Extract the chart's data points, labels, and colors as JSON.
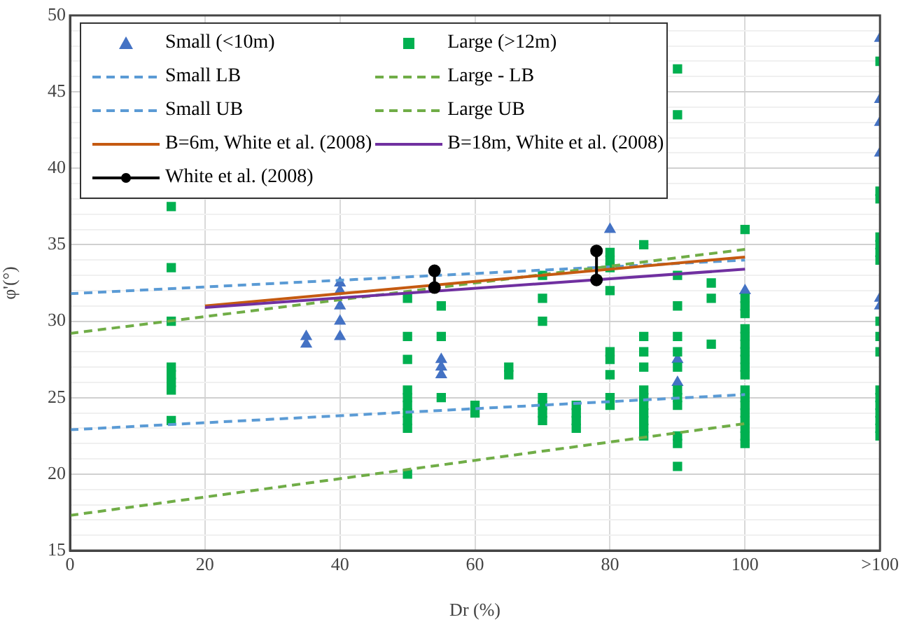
{
  "chart_data": {
    "type": "scatter",
    "xlabel": "Dr (%)",
    "ylabel": "φ'(°)",
    "xlim": [
      0,
      120
    ],
    "ylim": [
      15,
      50
    ],
    "xticks": [
      0,
      20,
      40,
      60,
      80,
      100,
      {
        "value": 120,
        "label": ">100"
      }
    ],
    "yticks": [
      15,
      {
        "value": 16,
        "label": null
      },
      {
        "value": 17,
        "label": null
      },
      {
        "value": 18,
        "label": null
      },
      {
        "value": 19,
        "label": null
      },
      20,
      {
        "value": 21,
        "label": null
      },
      {
        "value": 22,
        "label": null
      },
      {
        "value": 23,
        "label": null
      },
      {
        "value": 24,
        "label": null
      },
      25,
      {
        "value": 26,
        "label": null
      },
      {
        "value": 27,
        "label": null
      },
      {
        "value": 28,
        "label": null
      },
      {
        "value": 29,
        "label": null
      },
      30,
      {
        "value": 31,
        "label": null
      },
      {
        "value": 32,
        "label": null
      },
      {
        "value": 33,
        "label": null
      },
      {
        "value": 34,
        "label": null
      },
      35,
      {
        "value": 36,
        "label": null
      },
      {
        "value": 37,
        "label": null
      },
      {
        "value": 38,
        "label": null
      },
      {
        "value": 39,
        "label": null
      },
      40,
      {
        "value": 41,
        "label": null
      },
      {
        "value": 42,
        "label": null
      },
      {
        "value": 43,
        "label": null
      },
      {
        "value": 44,
        "label": null
      },
      45,
      {
        "value": 46,
        "label": null
      },
      {
        "value": 47,
        "label": null
      },
      {
        "value": 48,
        "label": null
      },
      {
        "value": 49,
        "label": null
      },
      50
    ],
    "grid": true,
    "legend": "top left",
    "series": [
      {
        "name": "Small (<10m)",
        "type": "scatter",
        "marker": "triangle",
        "color": "#4472c4",
        "x": [
          35,
          35,
          40,
          40,
          40,
          40,
          40,
          55,
          55,
          55,
          80,
          90,
          90,
          100,
          120,
          120,
          120,
          120,
          120,
          120
        ],
        "values": [
          28.5,
          29,
          32.5,
          32,
          31,
          30,
          29,
          27.5,
          27,
          26.5,
          36,
          27.5,
          26,
          32,
          48.5,
          44.5,
          43,
          41,
          31.5,
          31
        ]
      },
      {
        "name": "Large (>12m)",
        "type": "scatter",
        "marker": "square",
        "color": "#00b050",
        "x": [
          15,
          15,
          15,
          15,
          15,
          15,
          15,
          15,
          50,
          50,
          50,
          50,
          50,
          50,
          50,
          50,
          50,
          50,
          55,
          55,
          55,
          60,
          60,
          65,
          65,
          70,
          70,
          70,
          70,
          70,
          70,
          70,
          75,
          75,
          75,
          75,
          80,
          80,
          80,
          80,
          80,
          80,
          80,
          80,
          80,
          85,
          85,
          85,
          85,
          85,
          85,
          85,
          85,
          85,
          85,
          85,
          90,
          90,
          90,
          90,
          90,
          90,
          90,
          90,
          90,
          90,
          90,
          90,
          90,
          95,
          95,
          95,
          100,
          100,
          100,
          100,
          100,
          100,
          100,
          100,
          100,
          100,
          100,
          100,
          100,
          100,
          100,
          100,
          100,
          100,
          100,
          120,
          120,
          120,
          120,
          120,
          120,
          120,
          120,
          120,
          120,
          120,
          120,
          120,
          120,
          120,
          120,
          120
        ],
        "values": [
          37.5,
          33.5,
          30,
          27,
          26.5,
          26,
          25.5,
          23.5,
          31.5,
          29,
          27.5,
          25.5,
          25,
          24.5,
          24,
          23.5,
          23,
          20,
          31,
          29,
          25,
          24.5,
          24,
          27,
          26.5,
          33,
          31.5,
          30,
          25,
          24.5,
          24,
          23.5,
          24.5,
          24,
          23.5,
          23,
          34.5,
          34,
          33.5,
          32,
          28,
          27.5,
          26.5,
          25,
          24.5,
          35,
          29,
          28,
          27,
          25.5,
          25,
          24.5,
          24,
          23.5,
          23,
          22.5,
          46.5,
          43.5,
          33,
          31,
          29,
          28,
          27,
          25.5,
          25,
          24.5,
          22.5,
          22,
          20.5,
          32.5,
          31.5,
          28.5,
          36,
          31.5,
          31,
          30.5,
          29.5,
          29,
          28.5,
          28,
          27.5,
          27,
          26.5,
          25.5,
          25,
          24.5,
          24,
          23.5,
          23,
          22.5,
          22,
          47,
          38.5,
          38,
          35.5,
          35,
          34.5,
          34,
          30,
          29,
          28,
          25.5,
          25,
          24.5,
          24,
          23.5,
          23,
          22.5
        ]
      },
      {
        "name": "Small LB",
        "type": "line",
        "marker": "none",
        "line_style": "dashed",
        "color": "#5b9bd5",
        "x": [
          0,
          100
        ],
        "values": [
          22.9,
          25.2
        ]
      },
      {
        "name": "Large - LB",
        "type": "line",
        "marker": "none",
        "line_style": "dashed",
        "color": "#70ad47",
        "x": [
          0,
          100
        ],
        "values": [
          17.3,
          23.3
        ]
      },
      {
        "name": "Small UB",
        "type": "line",
        "marker": "none",
        "line_style": "dashed",
        "color": "#5b9bd5",
        "x": [
          0,
          100
        ],
        "values": [
          31.8,
          34.0
        ]
      },
      {
        "name": "Large UB",
        "type": "line",
        "marker": "none",
        "line_style": "dashed",
        "color": "#70ad47",
        "x": [
          0,
          100
        ],
        "values": [
          29.2,
          34.7
        ]
      },
      {
        "name": "B=6m, White et al. (2008)",
        "type": "line",
        "marker": "none",
        "line_style": "solid",
        "color": "#c55a11",
        "x": [
          20,
          100
        ],
        "values": [
          31.0,
          34.2
        ]
      },
      {
        "name": "B=18m, White et al. (2008)",
        "type": "line",
        "marker": "none",
        "line_style": "solid",
        "color": "#7030a0",
        "x": [
          20,
          100
        ],
        "values": [
          30.9,
          33.4
        ]
      },
      {
        "name": "White et al. (2008)",
        "type": "line",
        "marker": "circle",
        "line_style": "solid",
        "color": "#000000",
        "x": [
          54,
          54,
          66,
          78,
          78
        ],
        "values": [
          33.3,
          32.2,
          null,
          34.6,
          32.7
        ]
      }
    ]
  }
}
